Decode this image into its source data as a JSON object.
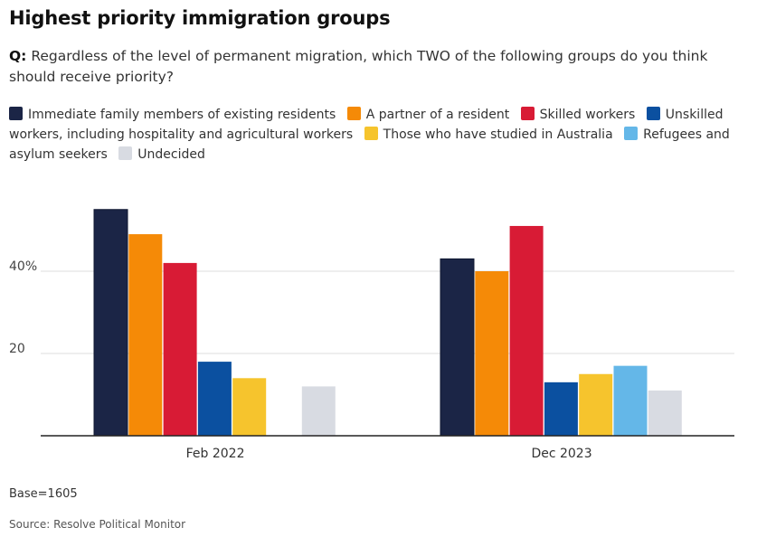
{
  "header": {
    "title": "Highest priority immigration groups",
    "question_prefix": "Q:",
    "question_text": "Regardless of the level of permanent migration, which TWO of the following groups do you think should receive priority?"
  },
  "chart_data": {
    "type": "bar",
    "categories": [
      "Feb 2022",
      "Dec 2023"
    ],
    "series": [
      {
        "name": "Immediate family members of existing residents",
        "color": "#1b2546",
        "values": [
          55,
          43
        ]
      },
      {
        "name": "A partner of a resident",
        "color": "#f58a07",
        "values": [
          49,
          40
        ]
      },
      {
        "name": "Skilled workers",
        "color": "#d81b35",
        "values": [
          42,
          51
        ]
      },
      {
        "name": "Unskilled workers, including hospitality and agricultural workers",
        "color": "#0b50a0",
        "values": [
          18,
          13
        ]
      },
      {
        "name": "Those who have studied in Australia",
        "color": "#f6c42d",
        "values": [
          14,
          15
        ]
      },
      {
        "name": "Refugees and asylum seekers",
        "color": "#64b7e8",
        "values": [
          null,
          17
        ]
      },
      {
        "name": "Undecided",
        "color": "#d8dbe2",
        "values": [
          12,
          11
        ]
      }
    ],
    "ylim": [
      0,
      60
    ],
    "yticks": [
      {
        "value": 20,
        "label": "20"
      },
      {
        "value": 40,
        "label": "40%"
      }
    ],
    "grid": true,
    "legend_position": "top"
  },
  "footer": {
    "base": "Base=1605",
    "source": "Source: Resolve Political Monitor"
  }
}
